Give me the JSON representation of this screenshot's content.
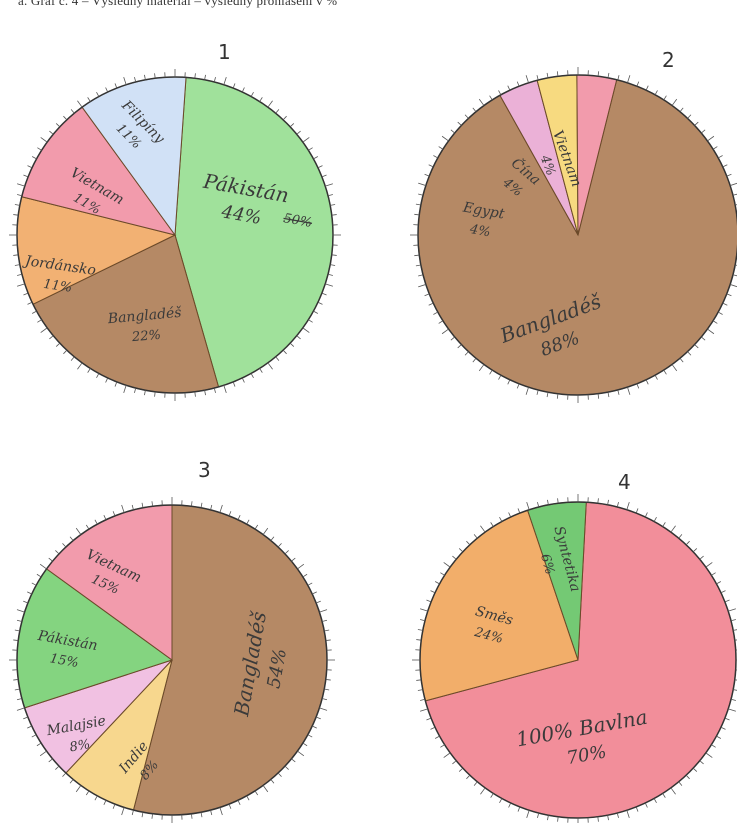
{
  "caption": "a. Graf č. 4 – Výsledný materiál – výsledný prohlášení v %",
  "colors": {
    "pakistan": "#8fdc8a",
    "bangladesh": "#a8744a",
    "jordan": "#f0a35a",
    "vietnam": "#f08a9e",
    "philippines": "#c9dcf5",
    "egypt": "#e8a3d0",
    "china": "#f6d46a",
    "malaysia": "#efb6dd",
    "india": "#f6d07a",
    "blend": "#f0a050",
    "synthetic": "#5cbf5c",
    "cotton": "#f07a88"
  },
  "chart_data": [
    {
      "type": "pie",
      "number": "1",
      "slices": [
        {
          "label": "Pákistán",
          "value": 44,
          "display": "44%",
          "extra": "50%",
          "color": "#8fdc8a"
        },
        {
          "label": "Bangladéš",
          "value": 22,
          "display": "22%",
          "color": "#a8744a"
        },
        {
          "label": "Jordánsko",
          "value": 11,
          "display": "11%",
          "color": "#f0a35a"
        },
        {
          "label": "Vietnam",
          "value": 11,
          "display": "11%",
          "color": "#f08a9e"
        },
        {
          "label": "Filipíny",
          "value": 11,
          "display": "11%",
          "color": "#c9dcf5"
        }
      ]
    },
    {
      "type": "pie",
      "number": "2",
      "slices": [
        {
          "label": "Bangladéš",
          "value": 88,
          "display": "88%",
          "color": "#a8744a"
        },
        {
          "label": "Egypt",
          "value": 4,
          "display": "4%",
          "color": "#e8a3d0"
        },
        {
          "label": "Čína",
          "value": 4,
          "display": "4%",
          "color": "#f6d46a"
        },
        {
          "label": "Vietnam",
          "value": 4,
          "display": "4%",
          "color": "#f08a9e"
        }
      ]
    },
    {
      "type": "pie",
      "number": "3",
      "slices": [
        {
          "label": "Bangladéš",
          "value": 54,
          "display": "54%",
          "color": "#a8744a"
        },
        {
          "label": "Indie",
          "value": 8,
          "display": "8%",
          "color": "#f6d07a"
        },
        {
          "label": "Malajsie",
          "value": 8,
          "display": "8%",
          "color": "#efb6dd"
        },
        {
          "label": "Pákistán",
          "value": 15,
          "display": "15%",
          "color": "#6fcc6a"
        },
        {
          "label": "Vietnam",
          "value": 15,
          "display": "15%",
          "color": "#f08a9e"
        }
      ]
    },
    {
      "type": "pie",
      "number": "4",
      "slices": [
        {
          "label": "100% Bavlna",
          "value": 70,
          "display": "70%",
          "color": "#f07a88"
        },
        {
          "label": "Směs",
          "value": 24,
          "display": "24%",
          "color": "#f0a050"
        },
        {
          "label": "Syntetika",
          "value": 6,
          "display": "6%",
          "color": "#5cbf5c"
        }
      ]
    }
  ]
}
